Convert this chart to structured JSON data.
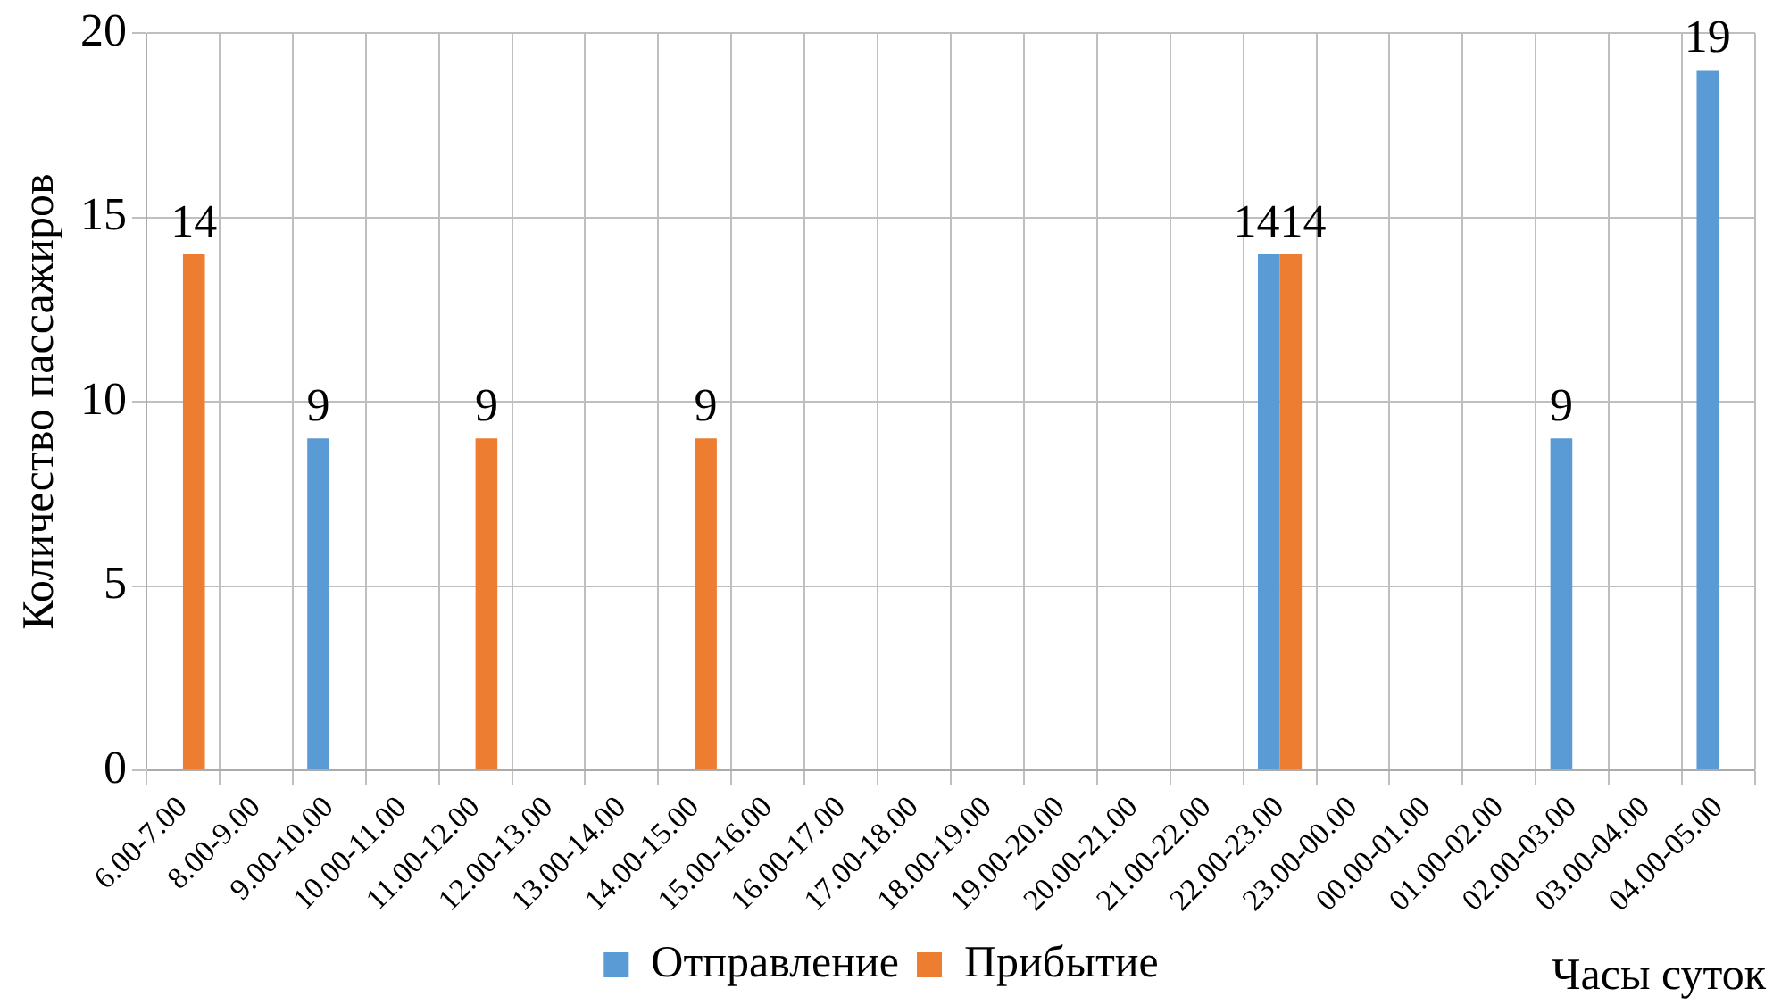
{
  "chart_data": {
    "type": "bar",
    "xlabel": "Часы суток",
    "ylabel": "Количество пассажиров",
    "categories": [
      "6.00-7.00",
      "8.00-9.00",
      "9.00-10.00",
      "10.00-11.00",
      "11.00-12.00",
      "12.00-13.00",
      "13.00-14.00",
      "14.00-15.00",
      "15.00-16.00",
      "16.00-17.00",
      "17.00-18.00",
      "18.00-19.00",
      "19.00-20.00",
      "20.00-21.00",
      "21.00-22.00",
      "22.00-23.00",
      "23.00-00.00",
      "00.00-01.00",
      "01.00-02.00",
      "02.00-03.00",
      "03.00-04.00",
      "04.00-05.00"
    ],
    "series": [
      {
        "name": "Отправление",
        "color": "#5b9bd5",
        "values": [
          0,
          0,
          9,
          0,
          0,
          0,
          0,
          0,
          0,
          0,
          0,
          0,
          0,
          0,
          0,
          14,
          0,
          0,
          0,
          9,
          0,
          19
        ],
        "value_labels": [
          null,
          null,
          "9",
          null,
          null,
          null,
          null,
          null,
          null,
          null,
          null,
          null,
          null,
          null,
          null,
          "14",
          null,
          null,
          null,
          "9",
          null,
          "19"
        ]
      },
      {
        "name": "Прибытие",
        "color": "#ed7d31",
        "values": [
          14,
          0,
          0,
          0,
          9,
          0,
          0,
          9,
          0,
          0,
          0,
          0,
          0,
          0,
          0,
          14,
          0,
          0,
          0,
          0,
          0,
          0
        ],
        "value_labels": [
          "14",
          null,
          null,
          null,
          "9",
          null,
          null,
          "9",
          null,
          null,
          null,
          null,
          null,
          null,
          null,
          "14",
          null,
          null,
          null,
          null,
          null,
          null
        ]
      }
    ],
    "ylim": [
      0,
      20
    ],
    "yticks": [
      0,
      5,
      10,
      15,
      20
    ],
    "grid": true,
    "legend": "bottom"
  }
}
